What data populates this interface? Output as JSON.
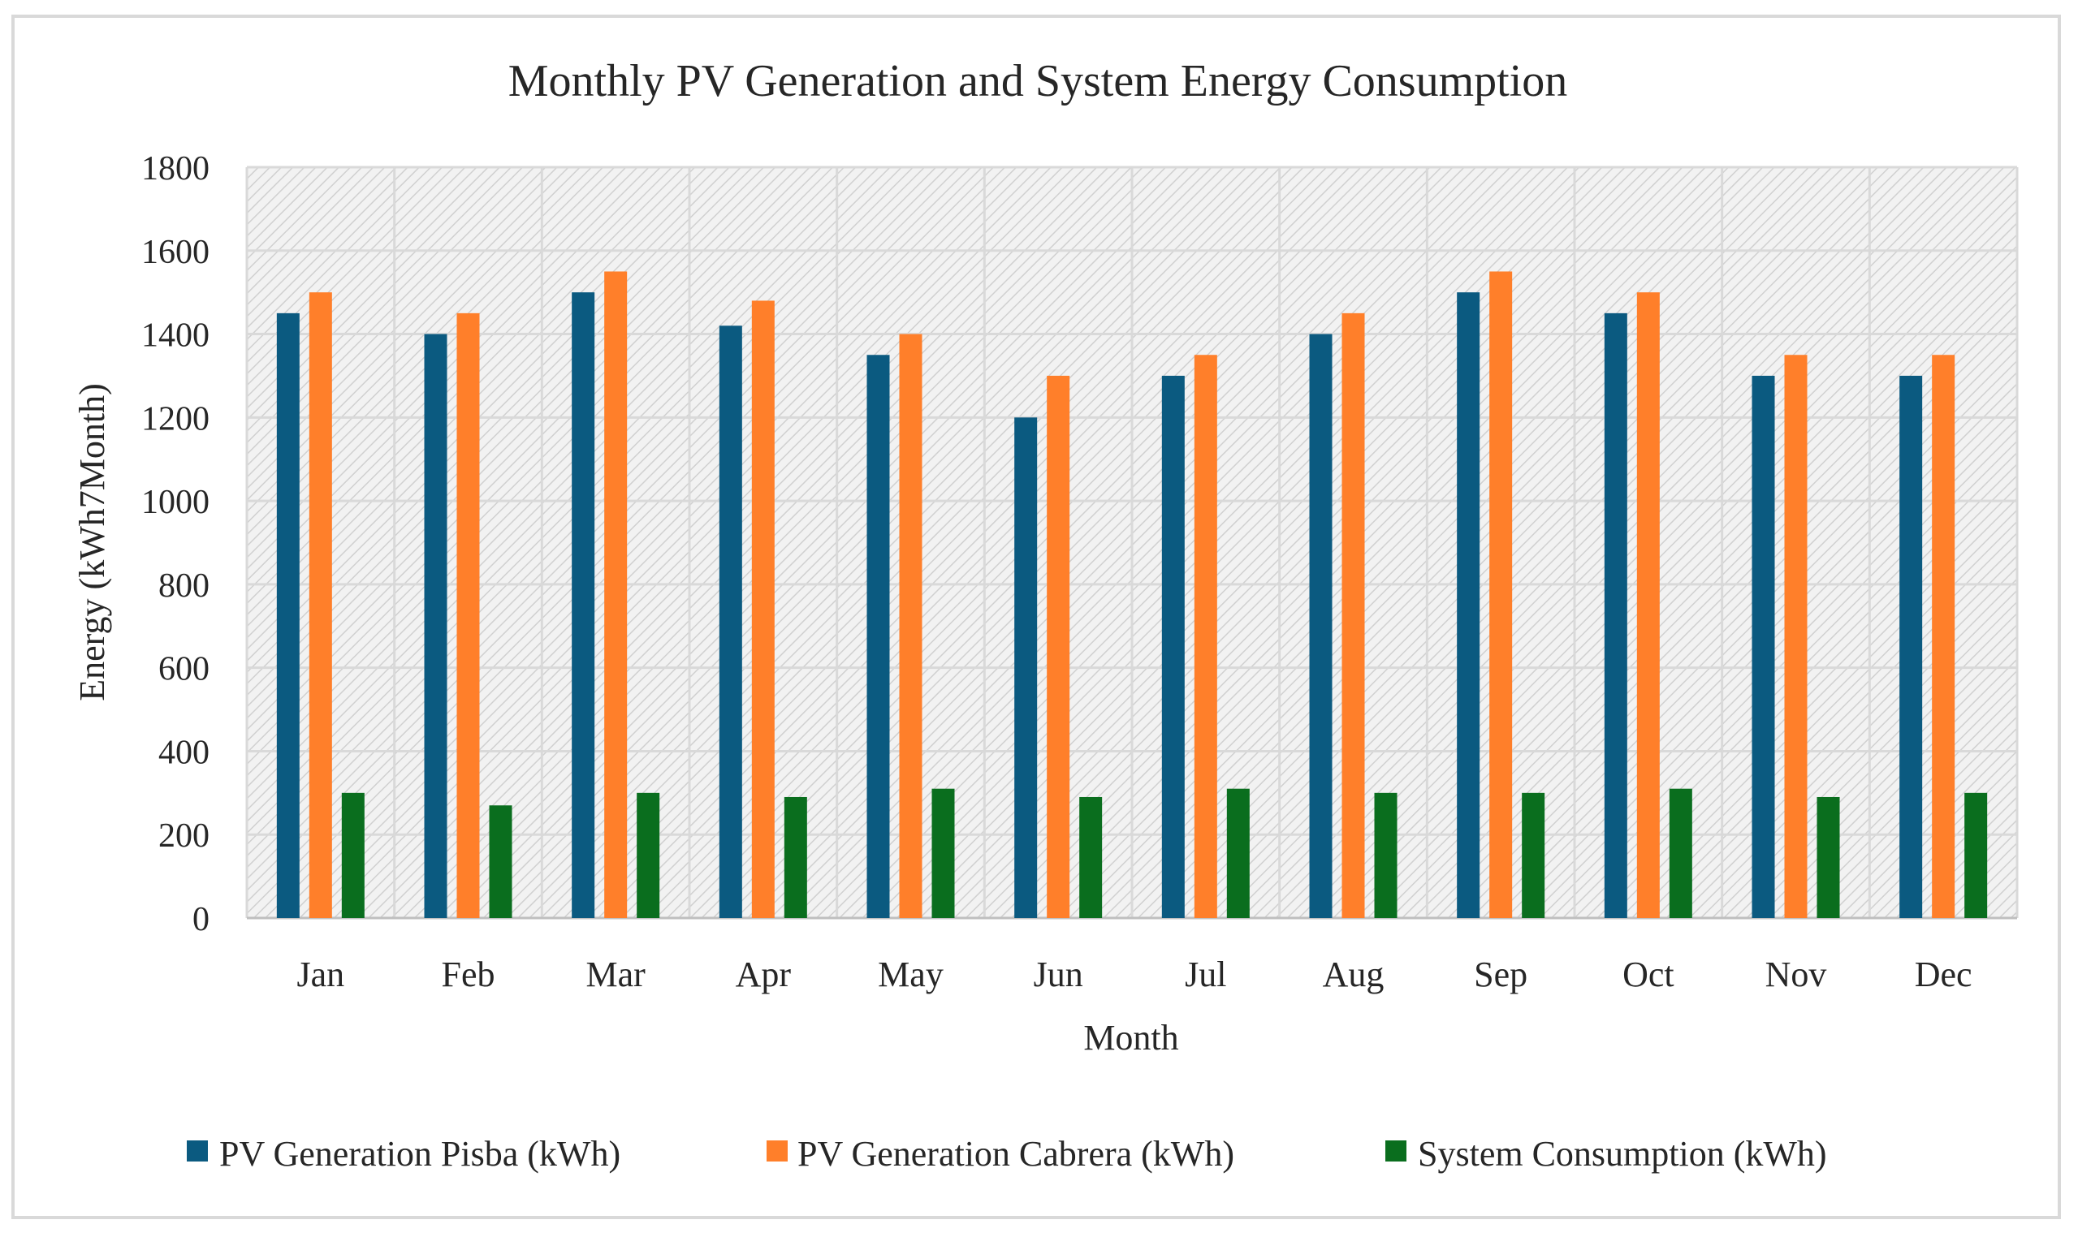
{
  "chart_data": {
    "type": "bar",
    "title": "Monthly PV Generation and System Energy Consumption",
    "xlabel": "Month",
    "ylabel": "Energy (kWh7Month)",
    "ylim": [
      0,
      1800
    ],
    "yticks": [
      0,
      200,
      400,
      600,
      800,
      1000,
      1200,
      1400,
      1600,
      1800
    ],
    "grid": true,
    "legend_position": "bottom",
    "categories": [
      "Jan",
      "Feb",
      "Mar",
      "Apr",
      "May",
      "Jun",
      "Jul",
      "Aug",
      "Sep",
      "Oct",
      "Nov",
      "Dec"
    ],
    "series": [
      {
        "name": "PV Generation Pisba (kWh)",
        "color": "#0b5a80",
        "values": [
          1450,
          1400,
          1500,
          1420,
          1350,
          1200,
          1300,
          1400,
          1500,
          1450,
          1300,
          1300
        ]
      },
      {
        "name": "PV Generation Cabrera (kWh)",
        "color": "#ff7f2a",
        "values": [
          1500,
          1450,
          1550,
          1480,
          1400,
          1300,
          1350,
          1450,
          1550,
          1500,
          1350,
          1350
        ]
      },
      {
        "name": "System Consumption (kWh)",
        "color": "#0a6e1e",
        "values": [
          300,
          270,
          300,
          290,
          310,
          290,
          310,
          300,
          300,
          310,
          290,
          300
        ]
      }
    ]
  }
}
